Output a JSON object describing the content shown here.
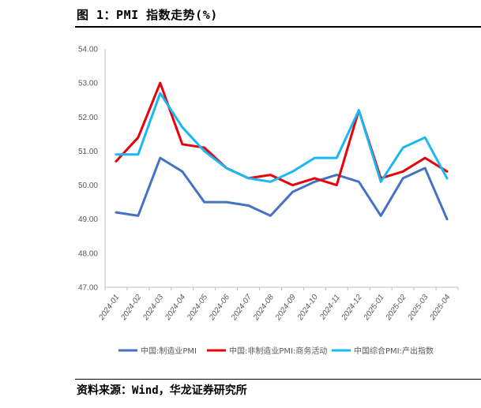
{
  "figure": {
    "title": "图 1：PMI 指数走势(%)",
    "source": "资料来源：Wind，华龙证券研究所"
  },
  "chart_data": {
    "type": "line",
    "title": "",
    "xlabel": "",
    "ylabel": "",
    "ylim": [
      47.0,
      54.0
    ],
    "yticks": [
      "47.00",
      "48.00",
      "49.00",
      "50.00",
      "51.00",
      "52.00",
      "53.00",
      "54.00"
    ],
    "grid": false,
    "legend_position": "bottom",
    "categories": [
      "2024-01",
      "2024-02",
      "2024-03",
      "2024-04",
      "2024-05",
      "2024-06",
      "2024-07",
      "2024-08",
      "2024-09",
      "2024-10",
      "2024-11",
      "2024-12",
      "2025-01",
      "2025-02",
      "2025-03",
      "2025-04"
    ],
    "series": [
      {
        "name": "中国:制造业PMI",
        "color": "#4472C4",
        "values": [
          49.2,
          49.1,
          50.8,
          50.4,
          49.5,
          49.5,
          49.4,
          49.1,
          49.8,
          50.1,
          50.3,
          50.1,
          49.1,
          50.2,
          50.5,
          49.0
        ]
      },
      {
        "name": "中国:非制造业PMI:商务活动",
        "color": "#E8000B",
        "values": [
          50.7,
          51.4,
          53.0,
          51.2,
          51.1,
          50.5,
          50.2,
          50.3,
          50.0,
          50.2,
          50.0,
          52.2,
          50.2,
          50.4,
          50.8,
          50.4
        ]
      },
      {
        "name": "中国综合PMI:产出指数",
        "color": "#1AB8F0",
        "values": [
          50.9,
          50.9,
          52.7,
          51.7,
          51.0,
          50.5,
          50.2,
          50.1,
          50.4,
          50.8,
          50.8,
          52.2,
          50.1,
          51.1,
          51.4,
          50.2
        ]
      }
    ]
  }
}
